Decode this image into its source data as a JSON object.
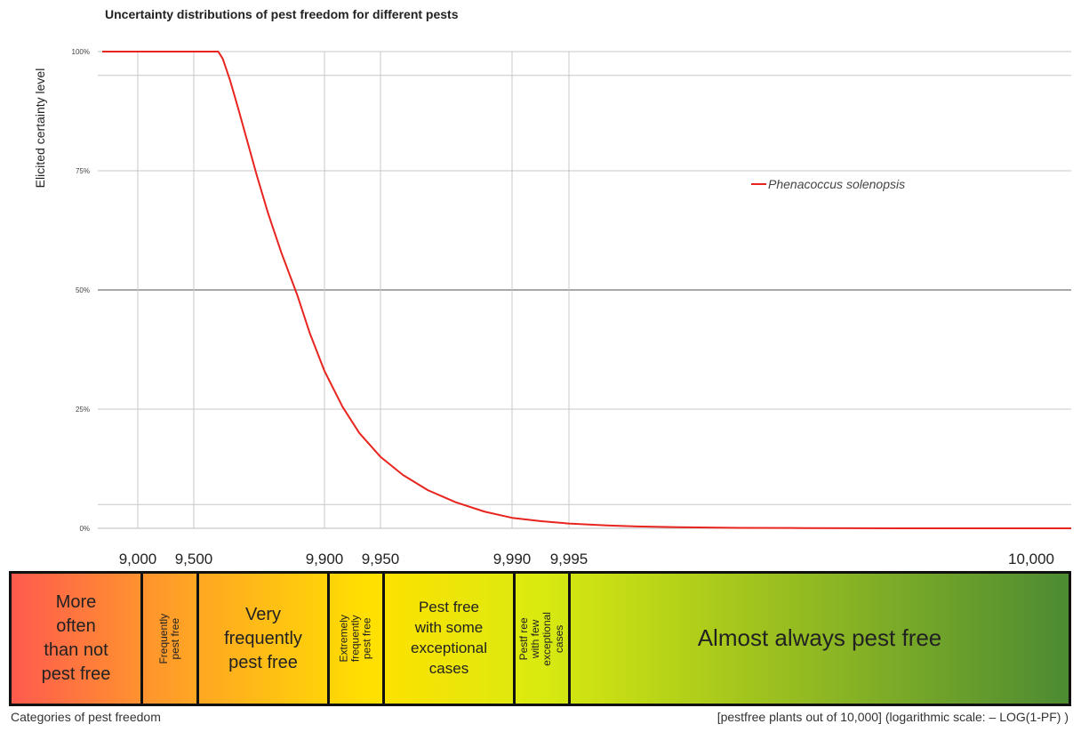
{
  "chart_data": {
    "type": "line",
    "title": "Uncertainty distributions of pest freedom for different pests",
    "ylabel": "Elicited certainty level",
    "y_ticks": [
      "100%",
      "75%",
      "50%",
      "25%",
      "0%"
    ],
    "ylim": [
      0,
      1
    ],
    "x_scale": "logarithmic (– LOG(1-PF))",
    "x_ticks": [
      "9,000",
      "9,500",
      "9,900",
      "9,950",
      "9,990",
      "9,995",
      "10,000"
    ],
    "series": [
      {
        "name": "Phenacoccus solenopsis",
        "color": "#e8241e",
        "x": [
          9000,
          9500,
          9630,
          9650,
          9680,
          9710,
          9740,
          9770,
          9800,
          9830,
          9860,
          9880,
          9900,
          9920,
          9935,
          9950,
          9962,
          9972,
          9980,
          9986,
          9990,
          9993,
          9995,
          9997,
          9998,
          9999,
          9999.5,
          9999.8,
          9999.95
        ],
        "y": [
          1.0,
          1.0,
          1.0,
          0.985,
          0.94,
          0.882,
          0.815,
          0.74,
          0.66,
          0.578,
          0.49,
          0.41,
          0.33,
          0.255,
          0.2,
          0.15,
          0.112,
          0.08,
          0.055,
          0.035,
          0.022,
          0.015,
          0.01,
          0.006,
          0.004,
          0.002,
          0.001,
          0.0005,
          0.0
        ]
      }
    ],
    "grid": true,
    "legend_position": "upper-right"
  },
  "categories_label": "Categories of pest freedom",
  "x_axis_note": "[pestfree plants out of 10,000] (logarithmic scale: – LOG(1-PF) )",
  "categories": [
    {
      "label": "More\noften\nthan not\npest free",
      "rotated": false,
      "size": 20
    },
    {
      "label": "Frequently\npest free",
      "rotated": true,
      "size": 12
    },
    {
      "label": "Very\nfrequently\npest free",
      "rotated": false,
      "size": 20
    },
    {
      "label": "Extremely\nfrequently pest free",
      "rotated": true,
      "size": 12
    },
    {
      "label": "Pest free\nwith some\nexceptional\ncases",
      "rotated": false,
      "size": 17
    },
    {
      "label": "Pestf ree with few\nexceptional cases",
      "rotated": true,
      "size": 12
    },
    {
      "label": "Almost always pest free",
      "rotated": false,
      "size": 26
    }
  ],
  "colors": {
    "gradient_start": "#ff5a4e",
    "gradient_mid1": "#ff9a2a",
    "gradient_mid2": "#ffe100",
    "gradient_mid3": "#d9ea10",
    "gradient_end": "#4b8a33",
    "grid": "#c8c8c8",
    "grid_50": "#8c8c8c"
  }
}
